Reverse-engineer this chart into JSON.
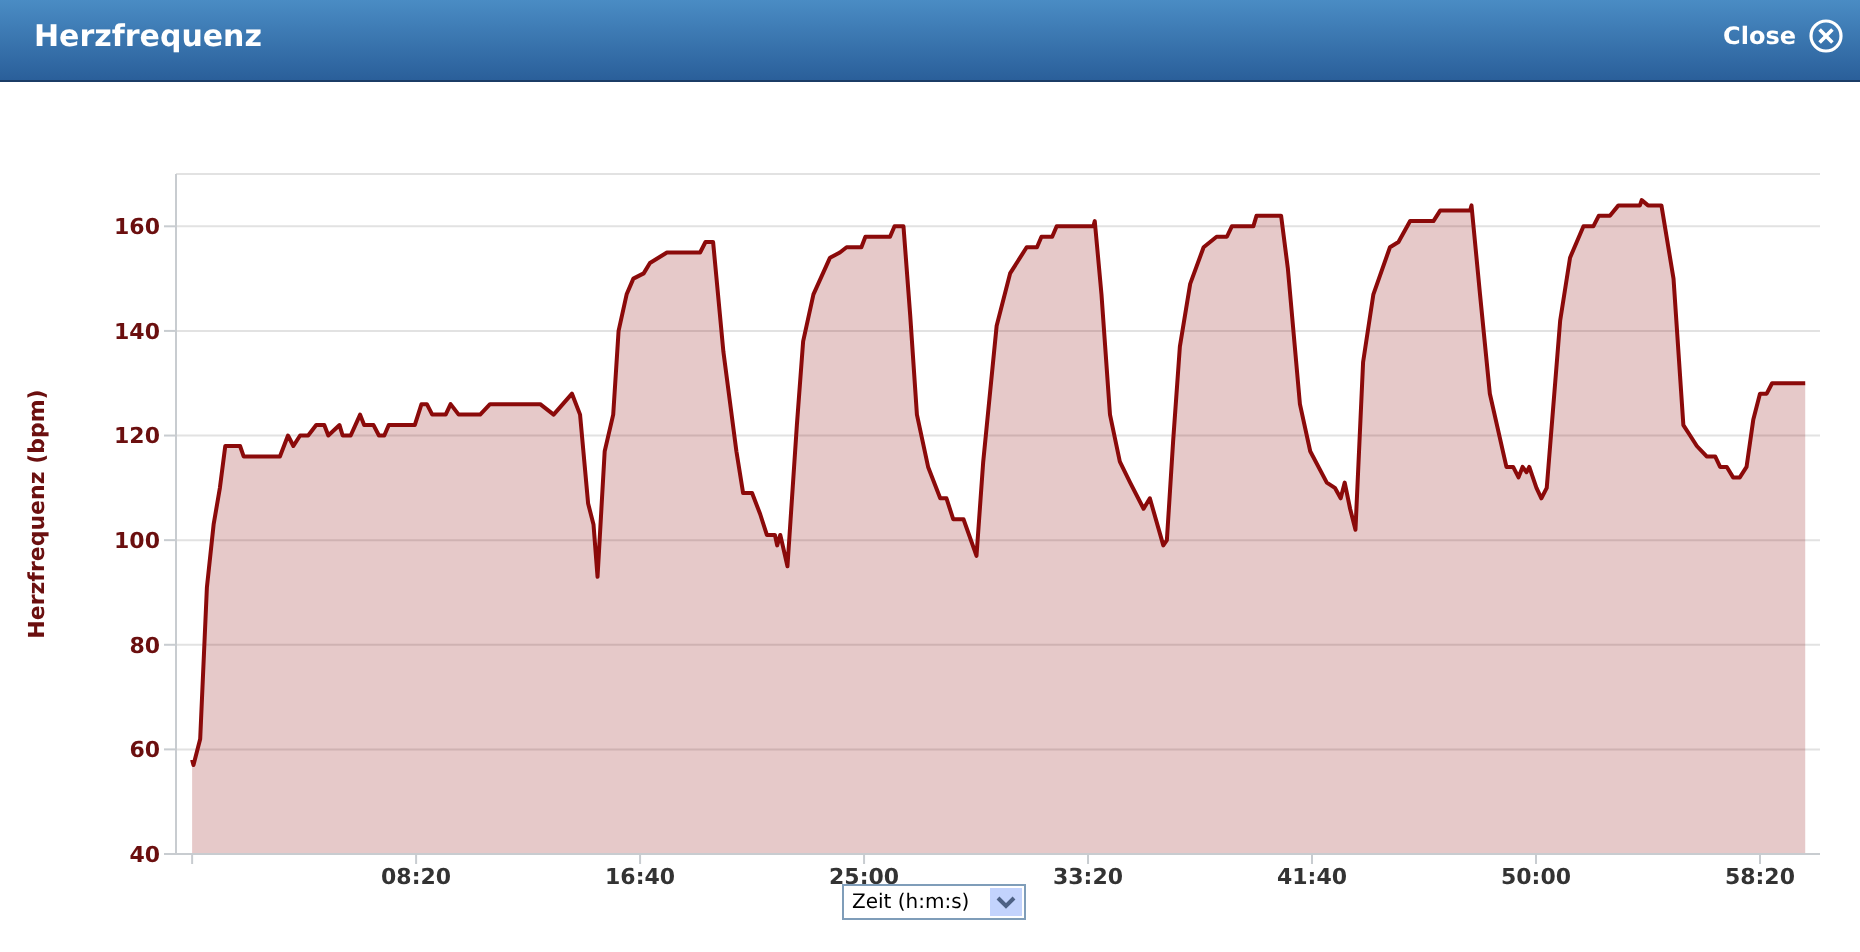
{
  "chart_data": {
    "type": "area",
    "title": "Herzfrequenz",
    "xlabel": "Zeit (h:m:s)",
    "ylabel": "Herzfrequenz (bpm)",
    "annotations": [
      "Close"
    ],
    "x": [
      0,
      3,
      18,
      33,
      48,
      62,
      74,
      107,
      115,
      196,
      214,
      226,
      241,
      259,
      277,
      295,
      304,
      329,
      336,
      354,
      375,
      384,
      405,
      417,
      429,
      439,
      497,
      512,
      524,
      536,
      566,
      577,
      595,
      643,
      665,
      777,
      792,
      807,
      848,
      866,
      884,
      896,
      905,
      921,
      940,
      952,
      970,
      985,
      1008,
      1022,
      1060,
      1134,
      1146,
      1163,
      1186,
      1215,
      1230,
      1250,
      1268,
      1283,
      1301,
      1306,
      1313,
      1329,
      1350,
      1364,
      1387,
      1424,
      1446,
      1461,
      1494,
      1503,
      1558,
      1568,
      1588,
      1603,
      1618,
      1643,
      1670,
      1684,
      1699,
      1722,
      1751,
      1766,
      1796,
      1826,
      1863,
      1886,
      1896,
      1920,
      1930,
      2012,
      2015,
      2030,
      2049,
      2071,
      2094,
      2124,
      2138,
      2168,
      2176,
      2190,
      2205,
      2228,
      2258,
      2287,
      2310,
      2321,
      2369,
      2376,
      2431,
      2446,
      2473,
      2496,
      2533,
      2551,
      2564,
      2573,
      2585,
      2597,
      2614,
      2637,
      2674,
      2693,
      2719,
      2771,
      2786,
      2853,
      2856,
      2875,
      2897,
      2934,
      2949,
      2961,
      2970,
      2979,
      2985,
      3001,
      3012,
      3024,
      3054,
      3076,
      3106,
      3128,
      3140,
      3165,
      3184,
      3232,
      3236,
      3250,
      3280,
      3307,
      3329,
      3344,
      3359,
      3381,
      3400,
      3411,
      3426,
      3440,
      3455,
      3470,
      3485,
      3500,
      3515,
      3527,
      3601
    ],
    "series": [
      {
        "color": "#8b0a0a",
        "values": [
          58,
          57,
          62,
          91,
          103,
          110,
          118,
          118,
          116,
          116,
          120,
          118,
          120,
          120,
          122,
          122,
          120,
          122,
          120,
          120,
          124,
          122,
          122,
          120,
          120,
          122,
          122,
          126,
          126,
          124,
          124,
          126,
          124,
          124,
          126,
          126,
          125,
          124,
          128,
          124,
          107,
          103,
          93,
          117,
          124,
          140,
          147,
          150,
          151,
          153,
          155,
          155,
          157,
          157,
          136,
          117,
          109,
          109,
          105,
          101,
          101,
          99,
          101,
          95,
          122,
          138,
          147,
          154,
          155,
          156,
          156,
          158,
          158,
          160,
          160,
          143,
          124,
          114,
          108,
          108,
          104,
          104,
          97,
          115,
          141,
          151,
          156,
          156,
          158,
          158,
          160,
          160,
          161,
          147,
          124,
          115,
          111,
          106,
          108,
          99,
          100,
          119,
          137,
          149,
          156,
          158,
          158,
          160,
          160,
          162,
          162,
          152,
          126,
          117,
          111,
          110,
          108,
          111,
          106,
          102,
          134,
          147,
          156,
          157,
          161,
          161,
          163,
          163,
          164,
          147,
          128,
          114,
          114,
          112,
          114,
          113,
          114,
          110,
          108,
          110,
          142,
          154,
          160,
          160,
          162,
          162,
          164,
          164,
          165,
          164,
          164,
          150,
          122,
          120,
          118,
          116,
          116,
          114,
          114,
          112,
          112,
          114,
          123,
          128,
          128,
          130,
          130
        ]
      }
    ],
    "xlim": [
      -36,
      3634
    ],
    "ylim": [
      40,
      170
    ],
    "xticks": [
      {
        "value": 0,
        "label": null
      },
      {
        "value": 500,
        "label": "08:20"
      },
      {
        "value": 1000,
        "label": "16:40"
      },
      {
        "value": 1500,
        "label": "25:00"
      },
      {
        "value": 2000,
        "label": "33:20"
      },
      {
        "value": 2500,
        "label": "41:40"
      },
      {
        "value": 3000,
        "label": "50:00"
      },
      {
        "value": 3500,
        "label": "58:20"
      }
    ],
    "yticks": [
      40,
      60,
      80,
      100,
      120,
      140,
      160
    ],
    "grid": "y",
    "marker": "none",
    "line_style": "solid"
  }
}
